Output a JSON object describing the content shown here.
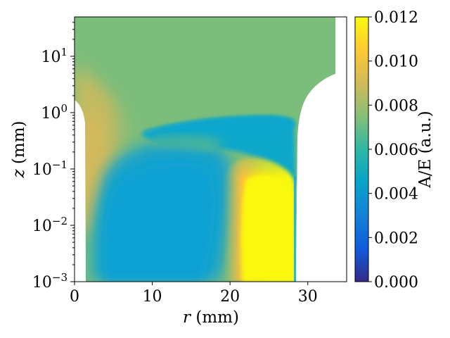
{
  "chart_data": {
    "type": "heatmap",
    "title": "",
    "xlabel": "r (mm)",
    "ylabel": "z (mm)",
    "xlim": [
      0,
      35
    ],
    "ylim": [
      0.001,
      50
    ],
    "yscale": "log",
    "x_ticks": [
      {
        "value": 0,
        "label": "0"
      },
      {
        "value": 10,
        "label": "10"
      },
      {
        "value": 20,
        "label": "20"
      },
      {
        "value": 30,
        "label": "30"
      }
    ],
    "y_ticks": [
      {
        "value": 0.001,
        "base": "10",
        "exp": "−3"
      },
      {
        "value": 0.01,
        "base": "10",
        "exp": "−2"
      },
      {
        "value": 0.1,
        "base": "10",
        "exp": "−1"
      },
      {
        "value": 1,
        "base": "10",
        "exp": "0"
      },
      {
        "value": 10,
        "base": "10",
        "exp": "1"
      }
    ],
    "colorbar": {
      "label": "A/E (a.u.)",
      "range": [
        0,
        0.012
      ],
      "ticks": [
        "0.000",
        "0.002",
        "0.004",
        "0.006",
        "0.008",
        "0.010",
        "0.012"
      ],
      "colormap": [
        "#352a87",
        "#0f5cdd",
        "#1481d6",
        "#06a4ca",
        "#2eb7a4",
        "#87bf77",
        "#d1bb59",
        "#fec832",
        "#f9fb0e"
      ]
    },
    "field": {
      "background_value": 0.0065,
      "regions": [
        {
          "name": "upper-field",
          "z_range": [
            0.8,
            50
          ],
          "r_range": [
            0,
            34
          ],
          "value": 0.0065
        },
        {
          "name": "central-low-region",
          "z_range": [
            0.001,
            0.3
          ],
          "r_range": [
            2,
            17
          ],
          "value": 0.0045
        },
        {
          "name": "high-ridge",
          "z_range": [
            0.001,
            0.2
          ],
          "r_range": [
            20,
            28.5
          ],
          "value": 0.012
        },
        {
          "name": "band-under-boundary",
          "z_range": [
            0.1,
            0.8
          ],
          "r_range": [
            14,
            28.5
          ],
          "value": 0.0045
        },
        {
          "name": "inner-edge-band",
          "z_range": [
            0.05,
            5
          ],
          "r_range": [
            0,
            6
          ],
          "value": 0.0078
        }
      ],
      "inner_boundary_r": 1.6,
      "outer_boundary_r": 28.5,
      "outer_top_r": 33.5
    }
  }
}
